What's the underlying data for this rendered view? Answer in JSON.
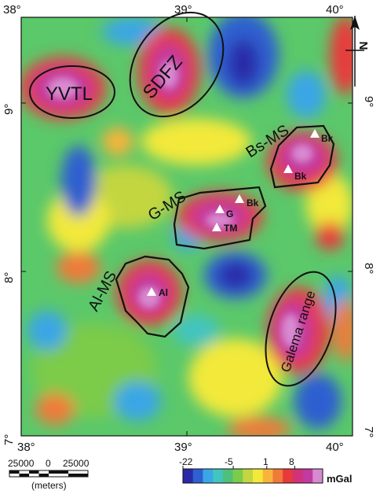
{
  "axes": {
    "top_ticks": [
      "38°",
      "39°",
      "40°"
    ],
    "bottom_ticks": [
      "38°",
      "39°",
      "40°"
    ],
    "left_ticks": [
      "9°",
      "8°",
      "7°"
    ],
    "right_ticks": [
      "9°",
      "8°",
      "7°"
    ]
  },
  "north_arrow_label": "N",
  "features": {
    "yvtl": "YVTL",
    "sdfz": "SDFZ",
    "bs_ms": "Bs-MS",
    "g_ms": "G-MS",
    "al_ms": "Al-MS",
    "galema": "Galema range"
  },
  "sites": {
    "bk1": "Bk",
    "bk2": "Bk",
    "bk3": "Bk",
    "g": "G",
    "tm": "TM",
    "al": "Al"
  },
  "scale_bar": {
    "left": "25000",
    "mid": "0",
    "right": "25000",
    "unit": "(meters)"
  },
  "colorbar": {
    "ticks": [
      "-22",
      "-5",
      "1",
      "8"
    ],
    "unit": "mGal",
    "colors": [
      "#2a2aa8",
      "#2f5fd0",
      "#3aa6e6",
      "#42c4c0",
      "#4fc07a",
      "#7ccb4a",
      "#c3d640",
      "#f2e93a",
      "#f8b43a",
      "#f07a3a",
      "#e83a3a",
      "#d1327a",
      "#c13aa0",
      "#d88ad0"
    ]
  }
}
